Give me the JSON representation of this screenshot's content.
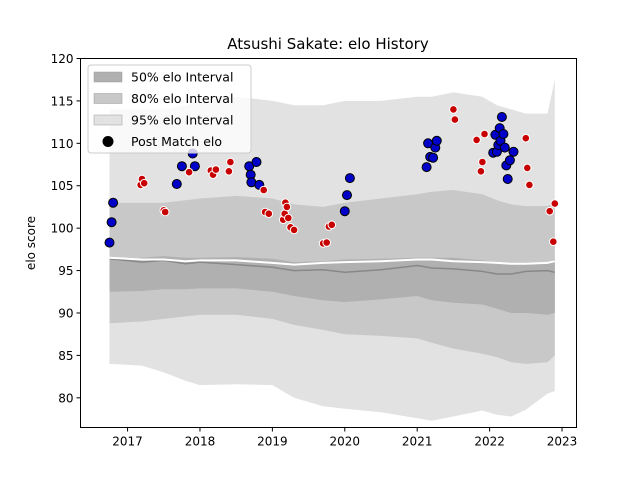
{
  "chart_data": {
    "type": "scatter",
    "title": "Atsushi Sakate: elo History",
    "xlabel": "",
    "ylabel": "elo score",
    "xlim": [
      2016.35,
      2023.2
    ],
    "ylim": [
      76.5,
      120.0
    ],
    "x_ticks": [
      {
        "label": "2017",
        "value": 2017
      },
      {
        "label": "2018",
        "value": 2018
      },
      {
        "label": "2019",
        "value": 2019
      },
      {
        "label": "2020",
        "value": 2020
      },
      {
        "label": "2021",
        "value": 2021
      },
      {
        "label": "2022",
        "value": 2022
      },
      {
        "label": "2023",
        "value": 2023
      }
    ],
    "y_ticks": [
      {
        "label": "80",
        "value": 80
      },
      {
        "label": "85",
        "value": 85
      },
      {
        "label": "90",
        "value": 90
      },
      {
        "label": "95",
        "value": 95
      },
      {
        "label": "100",
        "value": 100
      },
      {
        "label": "105",
        "value": 105
      },
      {
        "label": "110",
        "value": 110
      },
      {
        "label": "115",
        "value": 115
      },
      {
        "label": "120",
        "value": 120
      }
    ],
    "grid": false,
    "legend_position": "top-left",
    "legend": [
      {
        "label": "50% elo Interval",
        "kind": "band",
        "color": "#b0b0b0"
      },
      {
        "label": "80% elo Interval",
        "kind": "band",
        "color": "#c8c8c8"
      },
      {
        "label": "95% elo Interval",
        "kind": "band",
        "color": "#e2e2e2"
      },
      {
        "label": "Post Match elo",
        "kind": "marker",
        "color": "#000000"
      }
    ],
    "colors": {
      "band_95": "#e2e2e2",
      "band_80": "#c8c8c8",
      "band_50": "#b0b0b0",
      "mean_line": "#ffffff",
      "median_line": "#888888",
      "win_marker": "#0000c8",
      "loss_marker": "#c80000"
    },
    "bands": {
      "x": [
        2016.75,
        2017.2,
        2017.5,
        2017.8,
        2018.0,
        2018.5,
        2019.0,
        2019.3,
        2019.7,
        2020.0,
        2020.5,
        2021.0,
        2021.2,
        2021.5,
        2021.9,
        2022.1,
        2022.3,
        2022.5,
        2022.8,
        2022.9
      ],
      "p95_upper": [
        114.0,
        114.0,
        114.0,
        114.5,
        115.0,
        115.5,
        115.0,
        114.5,
        114.5,
        115.0,
        115.0,
        115.5,
        115.5,
        116.0,
        115.5,
        114.5,
        114.0,
        113.5,
        113.5,
        117.5
      ],
      "p80_upper": [
        103.0,
        103.0,
        103.0,
        103.3,
        103.5,
        103.8,
        103.5,
        102.8,
        102.5,
        103.0,
        103.5,
        104.0,
        104.3,
        104.5,
        104.0,
        103.3,
        102.8,
        102.6,
        102.6,
        103.0
      ],
      "p50_upper": [
        96.3,
        96.5,
        96.7,
        96.5,
        96.5,
        96.6,
        96.4,
        96.0,
        96.1,
        96.3,
        96.4,
        96.5,
        96.5,
        96.5,
        96.2,
        96.0,
        95.9,
        95.9,
        96.0,
        96.3
      ],
      "mean": [
        96.5,
        96.3,
        96.3,
        96.1,
        96.2,
        96.2,
        95.9,
        95.7,
        95.9,
        96.0,
        96.1,
        96.3,
        96.3,
        96.1,
        96.0,
        95.9,
        95.8,
        95.8,
        95.9,
        96.1
      ],
      "median": [
        96.4,
        96.0,
        96.2,
        95.8,
        96.0,
        95.7,
        95.4,
        95.0,
        95.1,
        94.8,
        95.1,
        95.6,
        95.3,
        95.2,
        94.9,
        94.6,
        94.6,
        94.9,
        95.0,
        94.8
      ],
      "p50_lower": [
        92.5,
        92.6,
        92.8,
        92.8,
        92.9,
        92.9,
        92.5,
        92.0,
        91.5,
        91.3,
        91.6,
        92.0,
        91.5,
        91.2,
        91.0,
        90.5,
        90.0,
        90.0,
        89.8,
        90.0
      ],
      "p80_lower": [
        88.8,
        89.0,
        89.3,
        89.6,
        89.8,
        89.8,
        89.3,
        88.6,
        88.0,
        87.5,
        87.3,
        87.0,
        86.5,
        85.8,
        85.2,
        84.8,
        84.2,
        84.0,
        84.2,
        85.0
      ],
      "p95_lower": [
        84.0,
        83.8,
        83.0,
        82.0,
        81.5,
        81.6,
        81.5,
        80.0,
        79.0,
        78.7,
        78.3,
        77.6,
        77.3,
        77.8,
        78.5,
        78.0,
        77.8,
        78.6,
        80.5,
        80.8
      ]
    },
    "series": [
      {
        "result": "win",
        "points": [
          [
            2016.75,
            98.3
          ],
          [
            2016.78,
            100.7
          ],
          [
            2016.8,
            103.0
          ],
          [
            2017.68,
            105.2
          ],
          [
            2017.75,
            107.3
          ],
          [
            2017.9,
            108.8
          ],
          [
            2017.93,
            107.3
          ],
          [
            2018.68,
            107.3
          ],
          [
            2018.7,
            106.3
          ],
          [
            2018.71,
            105.4
          ],
          [
            2018.78,
            107.8
          ],
          [
            2018.82,
            105.1
          ],
          [
            2020.0,
            102.0
          ],
          [
            2020.03,
            103.9
          ],
          [
            2020.07,
            105.9
          ],
          [
            2021.13,
            107.2
          ],
          [
            2021.15,
            110.0
          ],
          [
            2021.18,
            108.4
          ],
          [
            2021.22,
            108.3
          ],
          [
            2021.25,
            109.5
          ],
          [
            2021.27,
            110.3
          ],
          [
            2022.05,
            108.9
          ],
          [
            2022.08,
            111.0
          ],
          [
            2022.1,
            109.0
          ],
          [
            2022.12,
            109.8
          ],
          [
            2022.14,
            111.8
          ],
          [
            2022.15,
            110.3
          ],
          [
            2022.17,
            113.1
          ],
          [
            2022.19,
            111.1
          ],
          [
            2022.21,
            109.5
          ],
          [
            2022.23,
            107.4
          ],
          [
            2022.25,
            105.8
          ],
          [
            2022.28,
            108.0
          ],
          [
            2022.33,
            109.0
          ]
        ]
      },
      {
        "result": "loss",
        "points": [
          [
            2017.18,
            105.1
          ],
          [
            2017.2,
            105.8
          ],
          [
            2017.23,
            105.3
          ],
          [
            2017.5,
            102.1
          ],
          [
            2017.52,
            101.9
          ],
          [
            2017.85,
            106.6
          ],
          [
            2018.15,
            106.8
          ],
          [
            2018.18,
            106.3
          ],
          [
            2018.22,
            106.9
          ],
          [
            2018.4,
            106.7
          ],
          [
            2018.42,
            107.8
          ],
          [
            2018.88,
            104.5
          ],
          [
            2018.9,
            101.9
          ],
          [
            2018.95,
            101.7
          ],
          [
            2019.15,
            101.0
          ],
          [
            2019.17,
            101.7
          ],
          [
            2019.18,
            103.0
          ],
          [
            2019.2,
            102.5
          ],
          [
            2019.22,
            101.2
          ],
          [
            2019.25,
            100.1
          ],
          [
            2019.3,
            99.8
          ],
          [
            2019.7,
            98.2
          ],
          [
            2019.75,
            98.3
          ],
          [
            2019.78,
            100.2
          ],
          [
            2019.82,
            100.4
          ],
          [
            2021.5,
            114.0
          ],
          [
            2021.52,
            112.8
          ],
          [
            2021.82,
            110.4
          ],
          [
            2021.88,
            106.7
          ],
          [
            2021.9,
            107.8
          ],
          [
            2021.93,
            111.1
          ],
          [
            2022.5,
            110.6
          ],
          [
            2022.52,
            107.1
          ],
          [
            2022.55,
            105.1
          ],
          [
            2022.83,
            102.0
          ],
          [
            2022.88,
            98.4
          ],
          [
            2022.9,
            102.9
          ]
        ]
      }
    ]
  }
}
